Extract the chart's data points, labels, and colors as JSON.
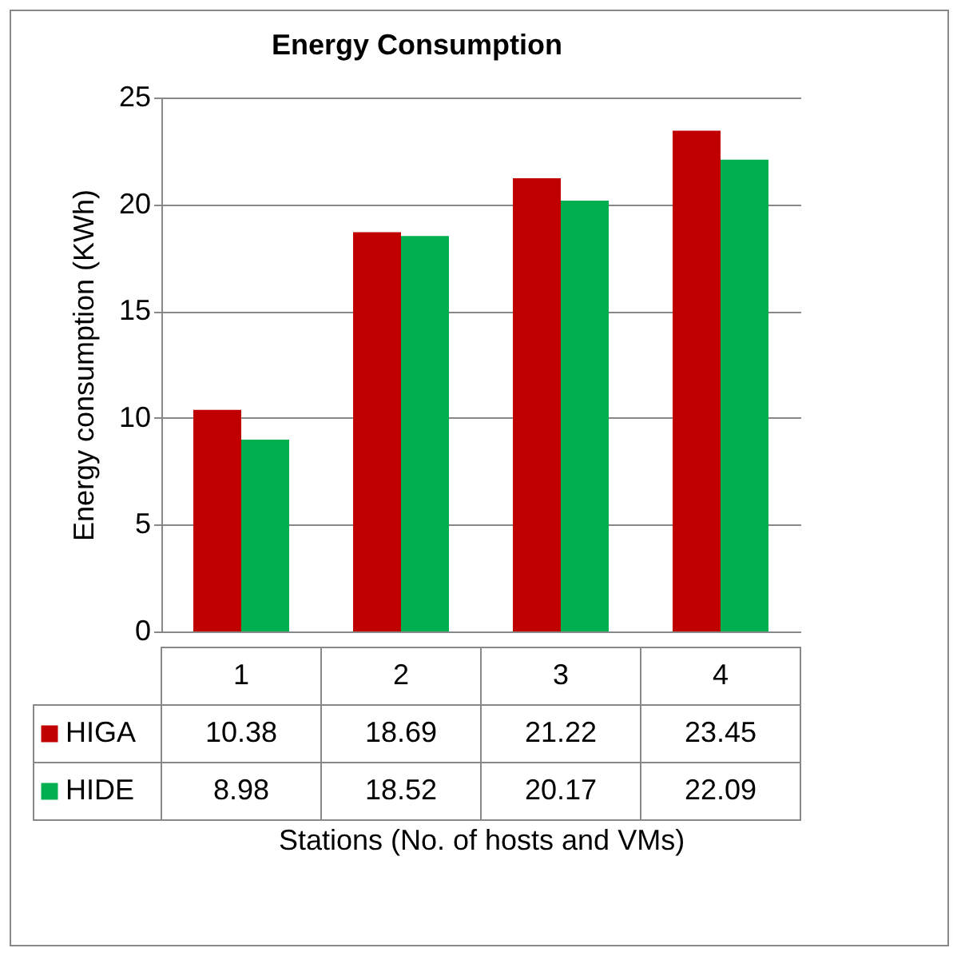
{
  "chart_data": {
    "type": "bar",
    "title": "Energy Consumption",
    "xlabel": "Stations (No. of hosts and VMs)",
    "ylabel": "Energy consumption (KWh)",
    "categories": [
      "1",
      "2",
      "3",
      "4"
    ],
    "series": [
      {
        "name": "HIGA",
        "color": "#c00000",
        "values": [
          10.38,
          18.69,
          21.22,
          23.45
        ]
      },
      {
        "name": "HIDE",
        "color": "#00b050",
        "values": [
          8.98,
          18.52,
          20.17,
          22.09
        ]
      }
    ],
    "ylim": [
      0,
      25
    ],
    "yticks": [
      0,
      5,
      10,
      15,
      20,
      25
    ],
    "grid": "y",
    "data_labels": true,
    "legend": "bottom left"
  }
}
